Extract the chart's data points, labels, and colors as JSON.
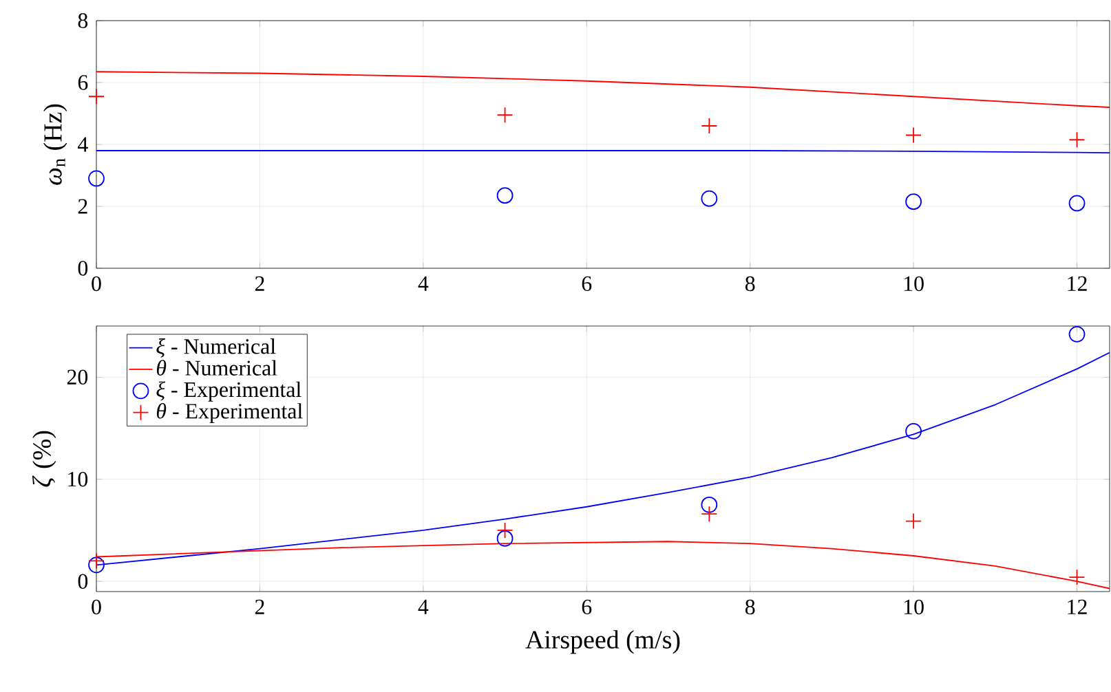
{
  "chart_data": [
    {
      "type": "line",
      "ylabel": "*ω*$_{n}$ (Hz)",
      "xlim": [
        0,
        12.4
      ],
      "xticks": [
        0,
        2,
        4,
        6,
        8,
        10,
        12
      ],
      "ylim": [
        0,
        8
      ],
      "yticks": [
        0,
        2,
        4,
        6,
        8
      ],
      "grid": true,
      "legend": false,
      "series": [
        {
          "color": "#0000ff",
          "marker": "none",
          "line_style": "solid",
          "x": [
            0,
            2,
            4,
            6,
            8,
            10,
            11,
            12,
            12.4
          ],
          "values": [
            3.8,
            3.8,
            3.8,
            3.8,
            3.8,
            3.78,
            3.76,
            3.74,
            3.73
          ]
        },
        {
          "color": "#ff0000",
          "marker": "none",
          "line_style": "solid",
          "x": [
            0,
            2,
            4,
            6,
            8,
            10,
            11,
            12,
            12.4
          ],
          "values": [
            6.35,
            6.3,
            6.2,
            6.05,
            5.85,
            5.55,
            5.4,
            5.25,
            5.2
          ]
        },
        {
          "type": "scatter",
          "color": "#0000ff",
          "marker": "circle",
          "x": [
            0,
            5,
            7.5,
            10,
            12
          ],
          "values": [
            2.9,
            2.35,
            2.25,
            2.15,
            2.1
          ]
        },
        {
          "type": "scatter",
          "color": "#ff0000",
          "marker": "cross",
          "x": [
            0,
            5,
            7.5,
            10,
            12
          ],
          "values": [
            5.55,
            4.95,
            4.6,
            4.3,
            4.15
          ]
        }
      ]
    },
    {
      "type": "line",
      "xlabel": "Airspeed (m/s)",
      "ylabel": "*ζ* (%)",
      "xlim": [
        0,
        12.4
      ],
      "xticks": [
        0,
        2,
        4,
        6,
        8,
        10,
        12
      ],
      "ylim": [
        -1,
        25
      ],
      "yticks": [
        0,
        10,
        20
      ],
      "grid": true,
      "legend": "top left",
      "series": [
        {
          "name": "*ξ* - Numerical",
          "color": "#0000ff",
          "marker": "none",
          "line_style": "solid",
          "x": [
            0,
            1,
            2,
            3,
            4,
            5,
            6,
            7,
            8,
            9,
            10,
            11,
            12,
            12.4
          ],
          "values": [
            1.6,
            2.4,
            3.2,
            4.1,
            5.0,
            6.1,
            7.3,
            8.7,
            10.2,
            12.1,
            14.4,
            17.3,
            20.8,
            22.4
          ]
        },
        {
          "name": "*θ* - Numerical",
          "color": "#ff0000",
          "marker": "none",
          "line_style": "solid",
          "x": [
            0,
            1,
            2,
            3,
            4,
            5,
            6,
            7,
            8,
            9,
            10,
            11,
            12,
            12.4
          ],
          "values": [
            2.4,
            2.7,
            3.0,
            3.3,
            3.5,
            3.7,
            3.8,
            3.9,
            3.7,
            3.2,
            2.5,
            1.5,
            0.0,
            -0.7
          ]
        },
        {
          "name": "*ξ* - Experimental",
          "type": "scatter",
          "color": "#0000ff",
          "marker": "circle",
          "x": [
            0,
            5,
            7.5,
            10,
            12
          ],
          "values": [
            1.6,
            4.2,
            7.5,
            14.7,
            24.2
          ]
        },
        {
          "name": "*θ* - Experimental",
          "type": "scatter",
          "color": "#ff0000",
          "marker": "cross",
          "x": [
            0,
            5,
            7.5,
            10,
            12
          ],
          "values": [
            2.0,
            5.0,
            6.6,
            5.9,
            0.4
          ]
        }
      ]
    }
  ]
}
